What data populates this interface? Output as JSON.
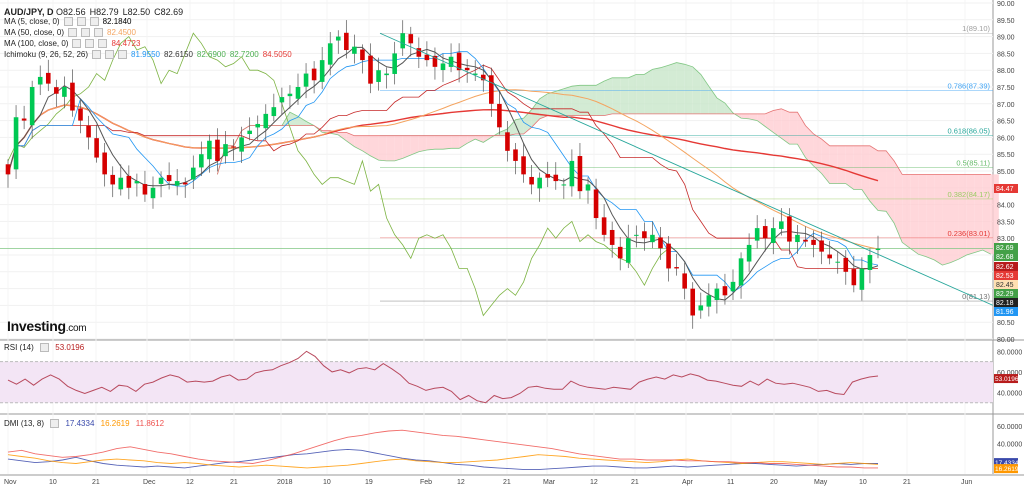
{
  "header": {
    "symbol": "AUD/JPY, D",
    "ohlc": [
      {
        "k": "O",
        "v": "82.56"
      },
      {
        "k": "H",
        "v": "82.79"
      },
      {
        "k": "L",
        "v": "82.50"
      },
      {
        "k": "C",
        "v": "82.69"
      }
    ],
    "indicators": [
      {
        "name": "MA (5, close, 0)",
        "values": [
          "82.1840"
        ],
        "colors": [
          "#000000"
        ]
      },
      {
        "name": "MA (50, close, 0)",
        "values": [
          "82.4500"
        ],
        "colors": [
          "#f4a460"
        ]
      },
      {
        "name": "MA (100, close, 0)",
        "values": [
          "84.4723"
        ],
        "colors": [
          "#e53935"
        ]
      },
      {
        "name": "Ichimoku (9, 26, 52, 26)",
        "values": [
          "81.9550",
          "82.6150",
          "82.6900",
          "82.7200",
          "84.5050"
        ],
        "colors": [
          "#2196f3",
          "#333333",
          "#4caf50",
          "#4caf50",
          "#e53935"
        ]
      }
    ]
  },
  "logo": {
    "text": "Investing",
    "suffix": ".com"
  },
  "colors": {
    "up": "#00c853",
    "down": "#d50000",
    "ma5": "#000000",
    "ma50": "#f4a460",
    "ma100": "#e53935",
    "tenkan": "#2196f3",
    "kijun": "#a82020",
    "chikou": "#7cb342",
    "cloud_bull": "#c8e6c9",
    "cloud_bear": "#ffcdd2",
    "trend": "#26a69a",
    "fib": "#66bb6a",
    "rsi": "#b71c1c",
    "rsi_band": "#f3e5f5",
    "dmi_plus": "#3949ab",
    "dmi_minus": "#ff8a65",
    "adx": "#ff8a65"
  },
  "chart_data": [
    {
      "type": "candlestick",
      "title": "AUD/JPY, D",
      "ylim": [
        80.0,
        90.0
      ],
      "yticks": [
        "90.00",
        "89.50",
        "89.00",
        "88.50",
        "88.00",
        "87.50",
        "87.00",
        "86.50",
        "86.00",
        "85.50",
        "85.00",
        "84.50",
        "84.00",
        "83.50",
        "83.00",
        "82.50",
        "82.00",
        "81.50",
        "81.00",
        "80.50",
        "80.00"
      ],
      "x_labels": [
        "Nov",
        "10",
        "21",
        "Dec",
        "12",
        "21",
        "2018",
        "10",
        "19",
        "Feb",
        "12",
        "21",
        "Mar",
        "12",
        "21",
        "Apr",
        "11",
        "20",
        "May",
        "10",
        "21",
        "Jun"
      ],
      "closes": [
        84.9,
        86.6,
        86.5,
        87.5,
        87.8,
        87.6,
        87.3,
        87.5,
        86.8,
        86.5,
        86.0,
        85.4,
        84.9,
        84.6,
        84.8,
        84.5,
        84.7,
        84.3,
        84.5,
        84.8,
        84.7,
        84.7,
        84.6,
        85.1,
        85.5,
        85.9,
        85.3,
        85.8,
        85.7,
        86.0,
        86.2,
        86.4,
        86.7,
        86.9,
        87.2,
        87.3,
        87.5,
        87.9,
        87.7,
        88.3,
        88.8,
        89.0,
        88.6,
        88.7,
        88.3,
        87.6,
        88.0,
        87.9,
        88.5,
        89.1,
        88.8,
        88.4,
        88.3,
        88.1,
        88.2,
        88.4,
        88.0,
        88.0,
        87.9,
        87.7,
        87.0,
        86.3,
        85.6,
        85.3,
        84.9,
        84.6,
        84.8,
        84.8,
        84.7,
        84.6,
        85.3,
        84.4,
        84.6,
        83.6,
        83.1,
        82.8,
        82.4,
        83.0,
        83.1,
        83.0,
        83.1,
        82.7,
        82.1,
        82.1,
        81.5,
        80.7,
        81.0,
        81.3,
        81.5,
        81.3,
        81.7,
        82.4,
        82.8,
        83.3,
        83.0,
        83.3,
        83.5,
        82.9,
        83.1,
        82.9,
        82.8,
        82.6,
        82.4,
        82.3,
        82.0,
        81.6,
        82.1,
        82.5,
        82.69
      ],
      "fib_levels": [
        {
          "label": "1(89.10)",
          "value": 89.1,
          "color": "#9e9e9e"
        },
        {
          "label": "0.786(87.39)",
          "value": 87.39,
          "color": "#42a5f5"
        },
        {
          "label": "0.618(86.05)",
          "value": 86.05,
          "color": "#26a69a"
        },
        {
          "label": "0.5(85.11)",
          "value": 85.11,
          "color": "#66bb6a"
        },
        {
          "label": "0.382(84.17)",
          "value": 84.17,
          "color": "#9ccc65"
        },
        {
          "label": "0.236(83.01)",
          "value": 83.01,
          "color": "#e53935"
        },
        {
          "label": "0(81.13)",
          "value": 81.13,
          "color": "#757575"
        }
      ],
      "price_tags": [
        {
          "label": "84.47",
          "value": 84.47,
          "bg": "#e53935",
          "fg": "#ffffff"
        },
        {
          "label": "82.69",
          "value": 82.69,
          "bg": "#43a047",
          "fg": "#ffffff"
        },
        {
          "label": "82.68",
          "value": 82.68,
          "bg": "#43a047",
          "fg": "#ffffff"
        },
        {
          "label": "82.62",
          "value": 82.62,
          "bg": "#b71c1c",
          "fg": "#ffffff"
        },
        {
          "label": "82.53",
          "value": 82.53,
          "bg": "#e53935",
          "fg": "#ffffff"
        },
        {
          "label": "82.45",
          "value": 82.45,
          "bg": "#ffe0b2",
          "fg": "#333333"
        },
        {
          "label": "82.29",
          "value": 82.29,
          "bg": "#43a047",
          "fg": "#ffffff"
        },
        {
          "label": "82.18",
          "value": 82.18,
          "bg": "#212121",
          "fg": "#ffffff"
        },
        {
          "label": "81.96",
          "value": 81.96,
          "bg": "#2196f3",
          "fg": "#ffffff"
        }
      ]
    },
    {
      "type": "line",
      "title": "RSI (14)",
      "value_label": "53.0196",
      "ylim": [
        20,
        90
      ],
      "yticks": [
        "80.0000",
        "60.0000",
        "40.0000"
      ],
      "band": [
        30,
        70
      ],
      "series": [
        {
          "values": [
            52,
            48,
            53,
            47,
            53,
            57,
            53,
            46,
            42,
            39,
            42,
            45,
            41,
            47,
            46,
            41,
            48,
            50,
            54,
            57,
            55,
            50,
            51,
            50,
            51,
            55,
            57,
            52,
            53,
            59,
            61,
            62,
            66,
            69,
            73,
            80,
            75,
            66,
            60,
            62,
            59,
            63,
            64,
            62,
            68,
            63,
            57,
            49,
            46,
            42,
            44,
            45,
            41,
            33,
            37,
            32,
            30,
            37,
            34,
            35,
            39,
            45,
            46,
            44,
            43,
            43,
            51,
            47,
            45,
            44,
            43,
            45,
            44,
            43,
            50,
            53,
            55,
            53,
            57,
            55,
            58,
            56,
            52,
            51,
            49,
            47,
            46,
            51,
            47,
            53,
            49,
            48,
            49,
            47,
            45,
            41,
            42,
            39,
            38,
            50,
            53,
            55,
            56
          ]
        }
      ]
    },
    {
      "type": "line",
      "title": "DMI (13, 8)",
      "value_labels": [
        "17.4334",
        "16.2619",
        "11.8612"
      ],
      "ylim": [
        5,
        70
      ],
      "yticks": [
        "60.0000",
        "40.0000"
      ],
      "series": [
        {
          "name": "17.4334",
          "color": "#3949ab",
          "values": [
            22,
            20,
            18,
            19,
            21,
            24,
            20,
            17,
            15,
            14,
            13,
            14,
            13,
            12,
            14,
            16,
            18,
            19,
            21,
            23,
            25,
            27,
            28,
            30,
            32,
            33,
            32,
            29,
            26,
            23,
            21,
            20,
            18,
            16,
            15,
            13,
            12,
            11,
            10,
            10,
            11,
            12,
            13,
            14,
            14,
            13,
            12,
            12,
            13,
            14,
            13,
            14,
            15,
            16,
            17,
            17,
            16,
            15,
            14,
            15,
            16,
            17,
            16,
            17,
            17
          ]
        },
        {
          "name": "16.2619",
          "color": "#ff9800",
          "values": [
            27,
            25,
            23,
            20,
            18,
            17,
            19,
            21,
            22,
            21,
            20,
            18,
            17,
            18,
            17,
            15,
            14,
            13,
            14,
            15,
            14,
            13,
            12,
            13,
            14,
            15,
            17,
            19,
            21,
            22,
            20,
            19,
            18,
            18,
            19,
            20,
            21,
            23,
            25,
            27,
            26,
            25,
            23,
            22,
            21,
            20,
            19,
            18,
            19,
            21,
            22,
            20,
            19,
            18,
            17,
            18,
            19,
            19,
            18,
            17,
            16,
            17,
            18,
            17,
            16
          ]
        },
        {
          "name": "11.8612",
          "color": "#ef5350",
          "values": [
            30,
            32,
            28,
            26,
            24,
            25,
            27,
            30,
            34,
            36,
            33,
            30,
            28,
            25,
            22,
            20,
            19,
            18,
            17,
            20,
            24,
            28,
            33,
            38,
            43,
            47,
            49,
            52,
            54,
            55,
            53,
            51,
            49,
            48,
            46,
            44,
            42,
            40,
            38,
            36,
            34,
            31,
            28,
            26,
            24,
            22,
            22,
            21,
            21,
            21,
            20,
            20,
            19,
            19,
            18,
            18,
            17,
            17,
            16,
            15,
            14,
            13,
            13,
            12,
            12
          ]
        }
      ]
    }
  ]
}
